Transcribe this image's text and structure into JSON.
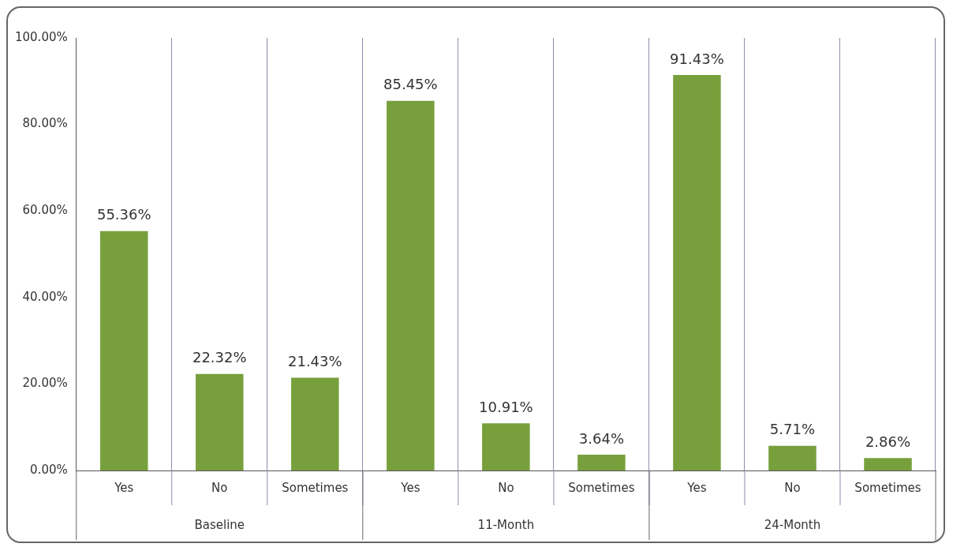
{
  "chart_data": {
    "type": "bar",
    "categories": [
      "Yes",
      "No",
      "Sometimes",
      "Yes",
      "No",
      "Sometimes",
      "Yes",
      "No",
      "Sometimes"
    ],
    "values": [
      55.36,
      22.32,
      21.43,
      85.45,
      10.91,
      3.64,
      91.43,
      5.71,
      2.86
    ],
    "value_labels": [
      "55.36%",
      "22.32%",
      "21.43%",
      "85.45%",
      "10.91%",
      "3.64%",
      "91.43%",
      "5.71%",
      "2.86%"
    ],
    "color": "#77a03c",
    "ylim": [
      0,
      100
    ],
    "yticks": [
      {
        "value": 0,
        "label": "0.00%"
      },
      {
        "value": 20,
        "label": "20.00%"
      },
      {
        "value": 40,
        "label": "40.00%"
      },
      {
        "value": 60,
        "label": "60.00%"
      },
      {
        "value": 80,
        "label": "80.00%"
      },
      {
        "value": 100,
        "label": "100.00%"
      }
    ],
    "annotations": [
      "Baseline",
      "11-Month",
      "24-Month"
    ],
    "grid": "x",
    "legend": false
  }
}
